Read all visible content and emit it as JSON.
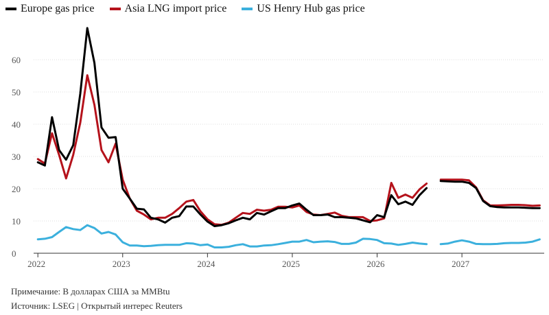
{
  "chart_data": {
    "type": "line",
    "title": "",
    "xlabel": "",
    "ylabel": "",
    "ylim": [
      0,
      70
    ],
    "yticks": [
      0,
      10,
      20,
      30,
      40,
      50,
      60
    ],
    "xlim": [
      2021.95,
      2027.97
    ],
    "xticks": [
      2022,
      2023,
      2024,
      2025,
      2026,
      2027
    ],
    "grid": "horizontal",
    "legend_position": "top-left",
    "series": [
      {
        "name": "Europe gas price",
        "color": "#000000",
        "segments": [
          {
            "x": [
              2022.0,
              2022.083,
              2022.167,
              2022.25,
              2022.333,
              2022.417,
              2022.5,
              2022.583,
              2022.667,
              2022.75,
              2022.833,
              2022.917,
              2023.0,
              2023.083,
              2023.167,
              2023.25,
              2023.333,
              2023.417,
              2023.5,
              2023.583,
              2023.667,
              2023.75,
              2023.833,
              2023.917,
              2024.0,
              2024.083,
              2024.167,
              2024.25,
              2024.333,
              2024.417,
              2024.5,
              2024.583,
              2024.667,
              2024.75,
              2024.833,
              2024.917,
              2025.0,
              2025.083,
              2025.167,
              2025.25,
              2025.333,
              2025.417,
              2025.5,
              2025.583,
              2025.667,
              2025.75,
              2025.833,
              2025.917,
              2026.0,
              2026.083,
              2026.167,
              2026.25,
              2026.333,
              2026.417,
              2026.5,
              2026.583
            ],
            "y": [
              28.2,
              27.2,
              42.2,
              32.0,
              29.0,
              33.5,
              49.5,
              69.8,
              59.0,
              39.0,
              35.8,
              36.0,
              20.0,
              17.0,
              13.8,
              13.6,
              11.0,
              10.5,
              9.5,
              11.0,
              11.5,
              14.5,
              14.5,
              12.0,
              9.8,
              8.4,
              8.7,
              9.3,
              10.2,
              11.0,
              10.5,
              12.5,
              12.0,
              13.0,
              14.0,
              14.0,
              14.8,
              15.4,
              13.5,
              11.8,
              11.8,
              12.0,
              11.2,
              11.2,
              11.0,
              10.8,
              10.2,
              9.6,
              11.8,
              11.2,
              18.0,
              15.2,
              16.0,
              15.0,
              18.0,
              20.2
            ]
          },
          {
            "x": [
              2026.75,
              2026.833,
              2026.917,
              2027.0,
              2027.083,
              2027.167,
              2027.25,
              2027.333,
              2027.417,
              2027.5,
              2027.583,
              2027.667,
              2027.75,
              2027.833,
              2027.917
            ],
            "y": [
              22.4,
              22.3,
              22.2,
              22.2,
              21.8,
              20.2,
              16.2,
              14.6,
              14.3,
              14.2,
              14.2,
              14.2,
              14.1,
              14.0,
              14.0
            ]
          }
        ]
      },
      {
        "name": "Asia LNG import price",
        "color": "#b5121b",
        "segments": [
          {
            "x": [
              2022.0,
              2022.083,
              2022.167,
              2022.25,
              2022.333,
              2022.417,
              2022.5,
              2022.583,
              2022.667,
              2022.75,
              2022.833,
              2022.917,
              2023.0,
              2023.083,
              2023.167,
              2023.25,
              2023.333,
              2023.417,
              2023.5,
              2023.583,
              2023.667,
              2023.75,
              2023.833,
              2023.917,
              2024.0,
              2024.083,
              2024.167,
              2024.25,
              2024.333,
              2024.417,
              2024.5,
              2024.583,
              2024.667,
              2024.75,
              2024.833,
              2024.917,
              2025.0,
              2025.083,
              2025.167,
              2025.25,
              2025.333,
              2025.417,
              2025.5,
              2025.583,
              2025.667,
              2025.75,
              2025.833,
              2025.917,
              2026.0,
              2026.083,
              2026.167,
              2026.25,
              2026.333,
              2026.417,
              2026.5,
              2026.583
            ],
            "y": [
              29.2,
              27.8,
              37.2,
              30.5,
              23.2,
              30.5,
              40.5,
              55.2,
              46.0,
              32.0,
              28.2,
              34.0,
              22.8,
              17.0,
              13.2,
              12.0,
              10.5,
              11.0,
              11.0,
              12.2,
              14.0,
              16.0,
              16.5,
              13.0,
              10.5,
              9.0,
              8.8,
              9.5,
              11.0,
              12.5,
              12.2,
              13.5,
              13.2,
              13.5,
              14.4,
              14.4,
              14.2,
              14.8,
              12.8,
              12.0,
              11.8,
              12.2,
              12.6,
              11.6,
              11.2,
              11.2,
              11.2,
              10.0,
              10.2,
              10.8,
              21.8,
              17.2,
              18.2,
              17.2,
              19.8,
              21.6
            ]
          },
          {
            "x": [
              2026.75,
              2026.833,
              2026.917,
              2027.0,
              2027.083,
              2027.167,
              2027.25,
              2027.333,
              2027.417,
              2027.5,
              2027.583,
              2027.667,
              2027.75,
              2027.833,
              2027.917
            ],
            "y": [
              22.8,
              22.8,
              22.8,
              22.8,
              22.6,
              20.4,
              16.4,
              14.8,
              14.8,
              14.9,
              15.0,
              15.0,
              14.9,
              14.7,
              14.8
            ]
          }
        ]
      },
      {
        "name": "US Henry Hub gas price",
        "color": "#3bb0dd",
        "segments": [
          {
            "x": [
              2022.0,
              2022.083,
              2022.167,
              2022.25,
              2022.333,
              2022.417,
              2022.5,
              2022.583,
              2022.667,
              2022.75,
              2022.833,
              2022.917,
              2023.0,
              2023.083,
              2023.167,
              2023.25,
              2023.333,
              2023.417,
              2023.5,
              2023.583,
              2023.667,
              2023.75,
              2023.833,
              2023.917,
              2024.0,
              2024.083,
              2024.167,
              2024.25,
              2024.333,
              2024.417,
              2024.5,
              2024.583,
              2024.667,
              2024.75,
              2024.833,
              2024.917,
              2025.0,
              2025.083,
              2025.167,
              2025.25,
              2025.333,
              2025.417,
              2025.5,
              2025.583,
              2025.667,
              2025.75,
              2025.833,
              2025.917,
              2026.0,
              2026.083,
              2026.167,
              2026.25,
              2026.333,
              2026.417,
              2026.5,
              2026.583
            ],
            "y": [
              4.3,
              4.5,
              5.0,
              6.6,
              8.1,
              7.5,
              7.2,
              8.7,
              7.8,
              6.1,
              6.6,
              5.8,
              3.4,
              2.4,
              2.4,
              2.2,
              2.3,
              2.5,
              2.6,
              2.6,
              2.6,
              3.1,
              3.0,
              2.5,
              2.7,
              1.8,
              1.8,
              2.0,
              2.5,
              2.8,
              2.1,
              2.1,
              2.4,
              2.5,
              2.8,
              3.2,
              3.6,
              3.6,
              4.1,
              3.4,
              3.6,
              3.7,
              3.5,
              2.9,
              2.9,
              3.3,
              4.5,
              4.4,
              4.1,
              3.1,
              3.0,
              2.6,
              2.9,
              3.3,
              3.0,
              2.8
            ]
          },
          {
            "x": [
              2026.75,
              2026.833,
              2026.917,
              2027.0,
              2027.083,
              2027.167,
              2027.25,
              2027.333,
              2027.417,
              2027.5,
              2027.583,
              2027.667,
              2027.75,
              2027.833,
              2027.917
            ],
            "y": [
              2.8,
              3.0,
              3.6,
              4.0,
              3.6,
              2.9,
              2.8,
              2.8,
              2.9,
              3.1,
              3.2,
              3.2,
              3.3,
              3.6,
              4.3
            ]
          }
        ]
      }
    ]
  },
  "footer": {
    "note": "Примечание: В долларах США за MMBtu",
    "source": "Источник: LSEG | Открытый интерес Reuters"
  }
}
